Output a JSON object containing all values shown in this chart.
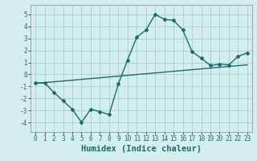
{
  "xlabel": "Humidex (Indice chaleur)",
  "background_color": "#d4eeed",
  "grid_color": "#a8d4d4",
  "line_color": "#1a6b6b",
  "x_values": [
    0,
    1,
    2,
    3,
    4,
    5,
    6,
    7,
    8,
    9,
    10,
    11,
    12,
    13,
    14,
    15,
    16,
    17,
    18,
    19,
    20,
    21,
    22,
    23
  ],
  "curve_y": [
    -0.7,
    -0.7,
    -1.5,
    -2.2,
    -2.9,
    -4.0,
    -2.9,
    -3.1,
    -3.35,
    -0.8,
    1.2,
    3.1,
    3.7,
    5.0,
    4.6,
    4.5,
    3.7,
    1.9,
    1.35,
    0.75,
    0.85,
    0.8,
    1.5,
    1.8
  ],
  "trend_y_start": -0.75,
  "trend_y_end": 0.8,
  "ylim": [
    -4.8,
    5.8
  ],
  "xlim": [
    -0.5,
    23.5
  ],
  "yticks": [
    -4,
    -3,
    -2,
    -1,
    0,
    1,
    2,
    3,
    4,
    5
  ],
  "xticks": [
    0,
    1,
    2,
    3,
    4,
    5,
    6,
    7,
    8,
    9,
    10,
    11,
    12,
    13,
    14,
    15,
    16,
    17,
    18,
    19,
    20,
    21,
    22,
    23
  ],
  "tick_fontsize": 5.5,
  "xlabel_fontsize": 7.5
}
